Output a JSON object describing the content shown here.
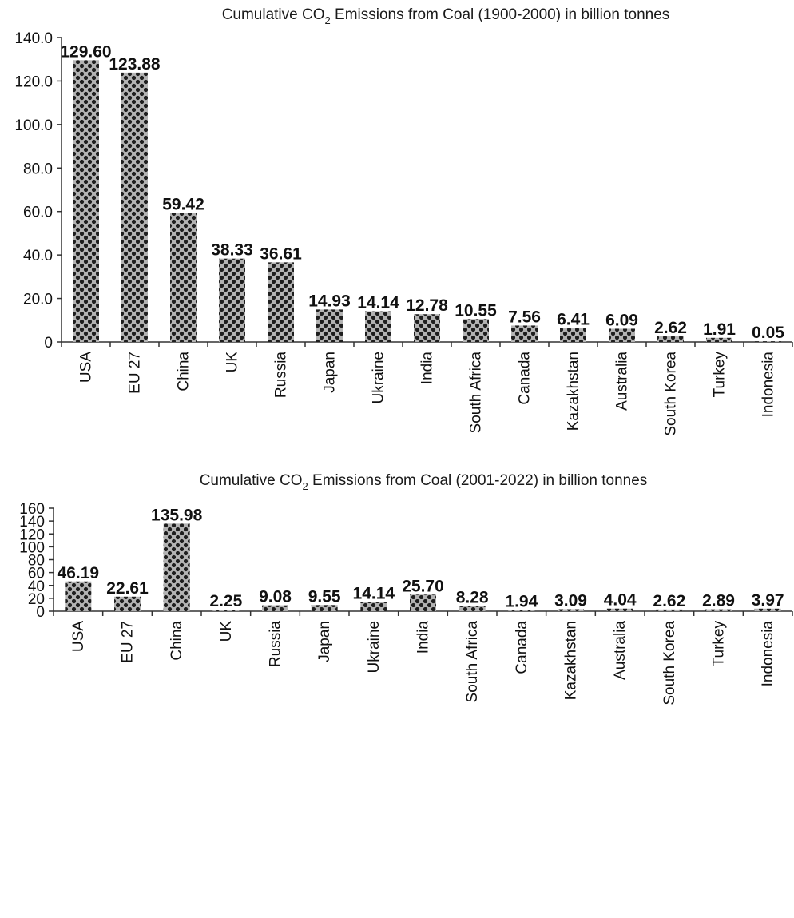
{
  "chart_data": [
    {
      "type": "bar",
      "title_prefix": "Cumulative CO",
      "title_subscript": "2",
      "title_suffix": " Emissions from Coal (1900-2000) in billion tonnes",
      "categories": [
        "USA",
        "EU 27",
        "China",
        "UK",
        "Russia",
        "Japan",
        "Ukraine",
        "India",
        "South Africa",
        "Canada",
        "Kazakhstan",
        "Australia",
        "South Korea",
        "Turkey",
        "Indonesia"
      ],
      "values": [
        129.6,
        123.88,
        59.42,
        38.33,
        36.61,
        14.93,
        14.14,
        12.78,
        10.55,
        7.56,
        6.41,
        6.09,
        2.62,
        1.91,
        0.05
      ],
      "value_labels": [
        "129.60",
        "123.88",
        "59.42",
        "38.33",
        "36.61",
        "14.93",
        "14.14",
        "12.78",
        "10.55",
        "7.56",
        "6.41",
        "6.09",
        "2.62",
        "1.91",
        "0.05"
      ],
      "yticks": [
        "0",
        "20.0",
        "40.0",
        "60.0",
        "80.0",
        "100.0",
        "120.0",
        "140.0"
      ],
      "ylim": [
        0,
        140
      ],
      "xlabel": "",
      "ylabel": "",
      "grid": false,
      "legend": "none"
    },
    {
      "type": "bar",
      "title_prefix": "Cumulative CO",
      "title_subscript": "2",
      "title_suffix": " Emissions from Coal (2001-2022) in billion tonnes",
      "categories": [
        "USA",
        "EU 27",
        "China",
        "UK",
        "Russia",
        "Japan",
        "Ukraine",
        "India",
        "South Africa",
        "Canada",
        "Kazakhstan",
        "Australia",
        "South Korea",
        "Turkey",
        "Indonesia"
      ],
      "values": [
        46.19,
        22.61,
        135.98,
        2.25,
        9.08,
        9.55,
        14.14,
        25.7,
        8.28,
        1.94,
        3.09,
        4.04,
        2.62,
        2.89,
        3.97
      ],
      "value_labels": [
        "46.19",
        "22.61",
        "135.98",
        "2.25",
        "9.08",
        "9.55",
        "14.14",
        "25.70",
        "8.28",
        "1.94",
        "3.09",
        "4.04",
        "2.62",
        "2.89",
        "3.97"
      ],
      "yticks": [
        "0",
        "20",
        "40",
        "60",
        "80",
        "100",
        "120",
        "140",
        "160"
      ],
      "ylim": [
        0,
        160
      ],
      "xlabel": "",
      "ylabel": "",
      "grid": false,
      "legend": "none"
    }
  ],
  "colors": {
    "bar_fill": "#b3b3b3",
    "dot": "#1e1e1e",
    "axis": "#333333",
    "text": "#111111"
  }
}
